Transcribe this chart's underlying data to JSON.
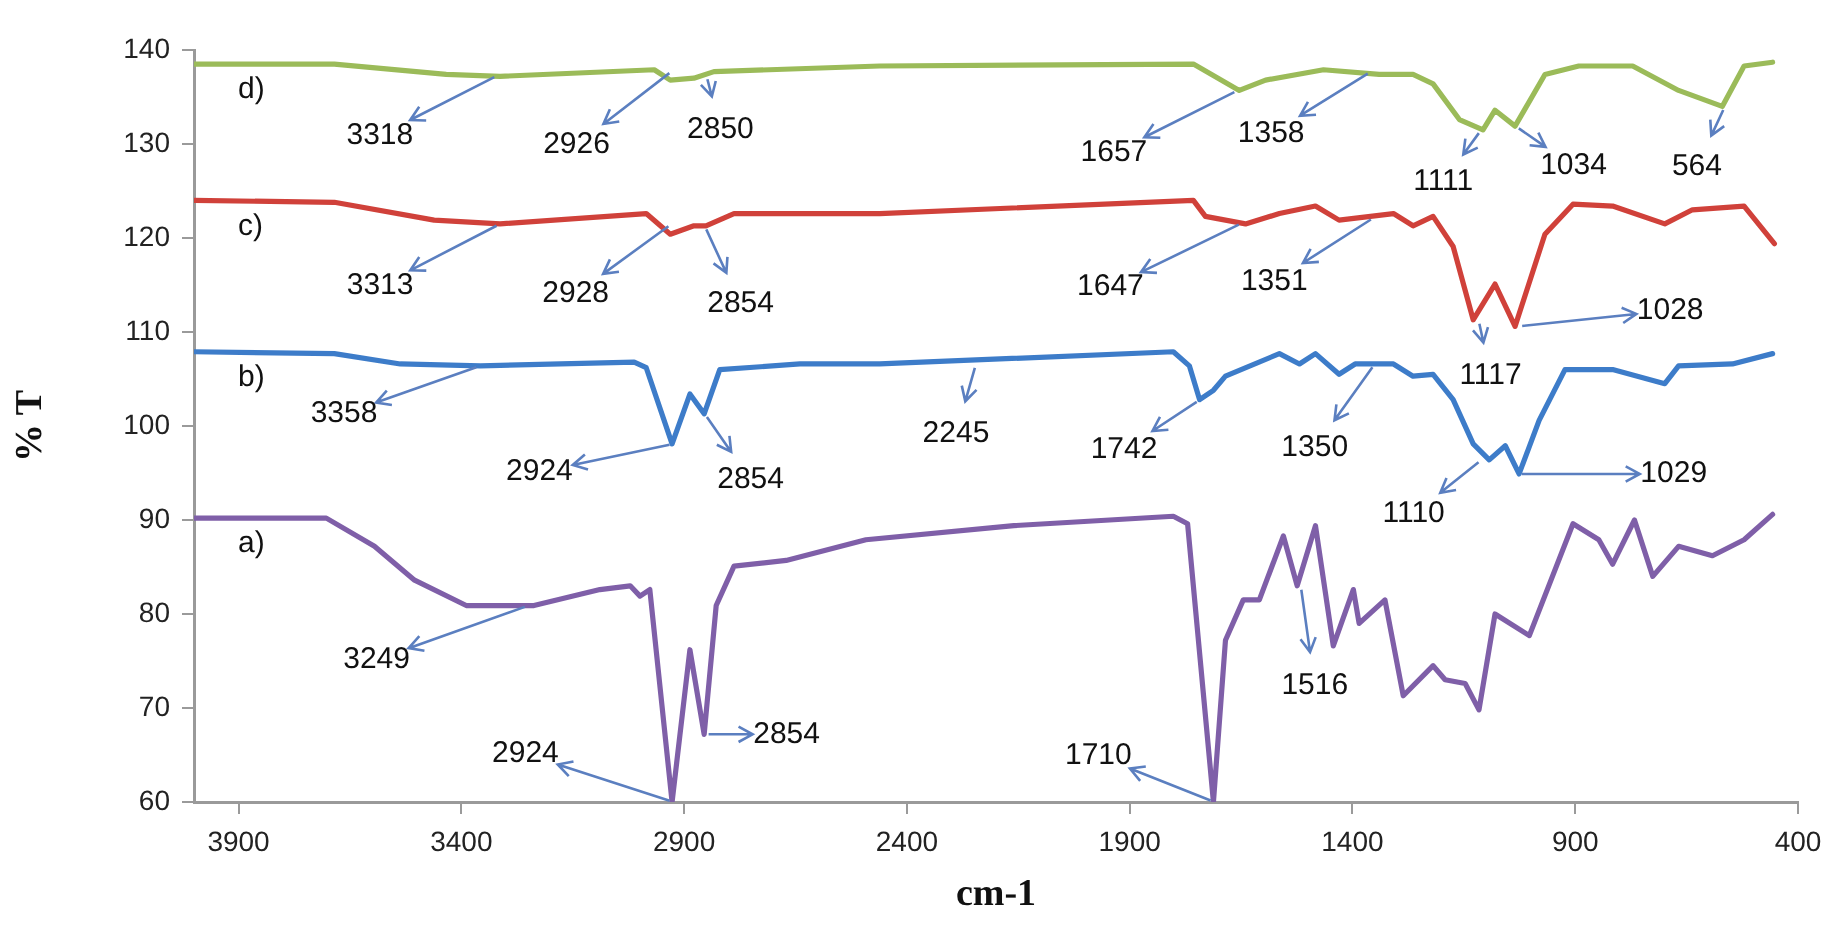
{
  "chart_data": {
    "type": "line",
    "xlabel": "cm-1",
    "ylabel": "% T",
    "xlim": [
      4000,
      400
    ],
    "xticks": [
      3900,
      3400,
      2900,
      2400,
      1900,
      1400,
      900,
      400
    ],
    "ylim": [
      60,
      140
    ],
    "yticks": [
      60,
      70,
      80,
      90,
      100,
      110,
      120,
      130,
      140
    ],
    "grid": false,
    "legend": false,
    "marker": "none",
    "line_style": "solid",
    "series": [
      {
        "name": "d)",
        "color": "#9bbb59",
        "x": [
          4000,
          3685,
          3434,
          3313,
          2967,
          2931,
          2878,
          2833,
          2461,
          1757,
          1654,
          1595,
          1465,
          1340,
          1264,
          1219,
          1160,
          1107,
          1080,
          1035,
          968,
          892,
          771,
          668,
          570,
          521,
          457
        ],
        "values": [
          138.5,
          138.5,
          137.4,
          137.2,
          137.9,
          136.8,
          137.0,
          137.7,
          138.3,
          138.5,
          135.7,
          136.8,
          137.9,
          137.4,
          137.4,
          136.4,
          132.6,
          131.5,
          133.6,
          131.9,
          137.4,
          138.3,
          138.3,
          135.7,
          134.0,
          138.3,
          138.7
        ]
      },
      {
        "name": "c)",
        "color": "#d0413a",
        "x": [
          4000,
          3685,
          3461,
          3313,
          2985,
          2931,
          2878,
          2851,
          2788,
          2461,
          1757,
          1730,
          1640,
          1564,
          1483,
          1430,
          1308,
          1264,
          1219,
          1174,
          1129,
          1080,
          1035,
          968,
          905,
          816,
          699,
          637,
          521,
          453
        ],
        "values": [
          124.0,
          123.8,
          121.9,
          121.5,
          122.6,
          120.4,
          121.3,
          121.3,
          122.6,
          122.6,
          124.0,
          122.3,
          121.5,
          122.6,
          123.4,
          121.9,
          122.6,
          121.3,
          122.3,
          119.1,
          111.3,
          115.1,
          110.6,
          120.4,
          123.6,
          123.4,
          121.5,
          123.0,
          123.4,
          119.4
        ]
      },
      {
        "name": "b)",
        "color": "#3d7cc9",
        "x": [
          4000,
          3685,
          3537,
          3357,
          3012,
          2985,
          2927,
          2887,
          2855,
          2820,
          2640,
          2461,
          1802,
          1766,
          1743,
          1712,
          1685,
          1564,
          1519,
          1483,
          1430,
          1394,
          1308,
          1264,
          1219,
          1174,
          1129,
          1093,
          1057,
          1026,
          981,
          923,
          816,
          699,
          668,
          547,
          457
        ],
        "values": [
          107.9,
          107.7,
          106.6,
          106.4,
          106.8,
          106.2,
          98.1,
          103.4,
          101.3,
          106.0,
          106.6,
          106.6,
          107.9,
          106.4,
          102.8,
          103.8,
          105.3,
          107.7,
          106.6,
          107.7,
          105.5,
          106.6,
          106.6,
          105.3,
          105.5,
          102.8,
          98.1,
          96.4,
          97.9,
          94.9,
          100.6,
          106.0,
          106.0,
          104.5,
          106.4,
          106.6,
          107.7
        ]
      },
      {
        "name": "a)",
        "color": "#7f5fa8",
        "x": [
          4000,
          3703,
          3595,
          3505,
          3389,
          3237,
          3089,
          3021,
          2999,
          2977,
          2927,
          2887,
          2855,
          2828,
          2788,
          2671,
          2492,
          2160,
          1802,
          1770,
          1712,
          1685,
          1645,
          1609,
          1555,
          1524,
          1483,
          1443,
          1398,
          1385,
          1327,
          1286,
          1219,
          1192,
          1147,
          1116,
          1080,
          1003,
          905,
          847,
          816,
          767,
          726,
          668,
          592,
          521,
          457
        ],
        "values": [
          90.2,
          90.2,
          87.2,
          83.6,
          80.9,
          80.9,
          82.6,
          83.0,
          81.9,
          82.6,
          60,
          76.2,
          67.2,
          80.9,
          85.1,
          85.7,
          87.9,
          89.4,
          90.4,
          89.6,
          60,
          77.2,
          81.5,
          81.5,
          88.3,
          83.0,
          89.4,
          76.6,
          82.6,
          79.0,
          81.5,
          71.3,
          74.5,
          73.0,
          72.6,
          69.8,
          80.0,
          77.7,
          89.6,
          87.9,
          85.3,
          90.0,
          84.0,
          87.2,
          86.2,
          87.9,
          90.6
        ]
      }
    ],
    "annotations": [
      {
        "text": "3318",
        "x": 3318,
        "y": 137.3
      },
      {
        "text": "2926",
        "x": 2926,
        "y": 137.8
      },
      {
        "text": "2850",
        "x": 2850,
        "y": 137.3
      },
      {
        "text": "3313",
        "x": 3313,
        "y": 121.5
      },
      {
        "text": "2928",
        "x": 2928,
        "y": 121.5
      },
      {
        "text": "2854",
        "x": 2854,
        "y": 121.3
      },
      {
        "text": "3358",
        "x": 3358,
        "y": 106.4
      },
      {
        "text": "2924",
        "x": 2924,
        "y": 98.1
      },
      {
        "text": "2854",
        "x": 2854,
        "y": 101.3
      },
      {
        "text": "2245",
        "x": 2245,
        "y": 106.6
      },
      {
        "text": "1742",
        "x": 1742,
        "y": 102.8
      },
      {
        "text": "1350",
        "x": 1350,
        "y": 106.6
      },
      {
        "text": "1110",
        "x": 1110,
        "y": 96.4
      },
      {
        "text": "1029",
        "x": 1029,
        "y": 94.9
      },
      {
        "text": "3249",
        "x": 3249,
        "y": 80.9
      },
      {
        "text": "2924",
        "x": 2924,
        "y": 60
      },
      {
        "text": "2854",
        "x": 2854,
        "y": 67.2
      },
      {
        "text": "1710",
        "x": 1710,
        "y": 60
      },
      {
        "text": "1516",
        "x": 1516,
        "y": 83.0
      },
      {
        "text": "1657",
        "x": 1657,
        "y": 135.7
      },
      {
        "text": "1358",
        "x": 1358,
        "y": 137.7
      },
      {
        "text": "1111",
        "x": 1111,
        "y": 131.5
      },
      {
        "text": "1034",
        "x": 1034,
        "y": 131.9
      },
      {
        "text": "564",
        "x": 564,
        "y": 134.0
      },
      {
        "text": "1647",
        "x": 1647,
        "y": 121.6
      },
      {
        "text": "1351",
        "x": 1351,
        "y": 122.2
      },
      {
        "text": "1117",
        "x": 1117,
        "y": 111.3
      },
      {
        "text": "1028",
        "x": 1028,
        "y": 110.6
      }
    ]
  }
}
